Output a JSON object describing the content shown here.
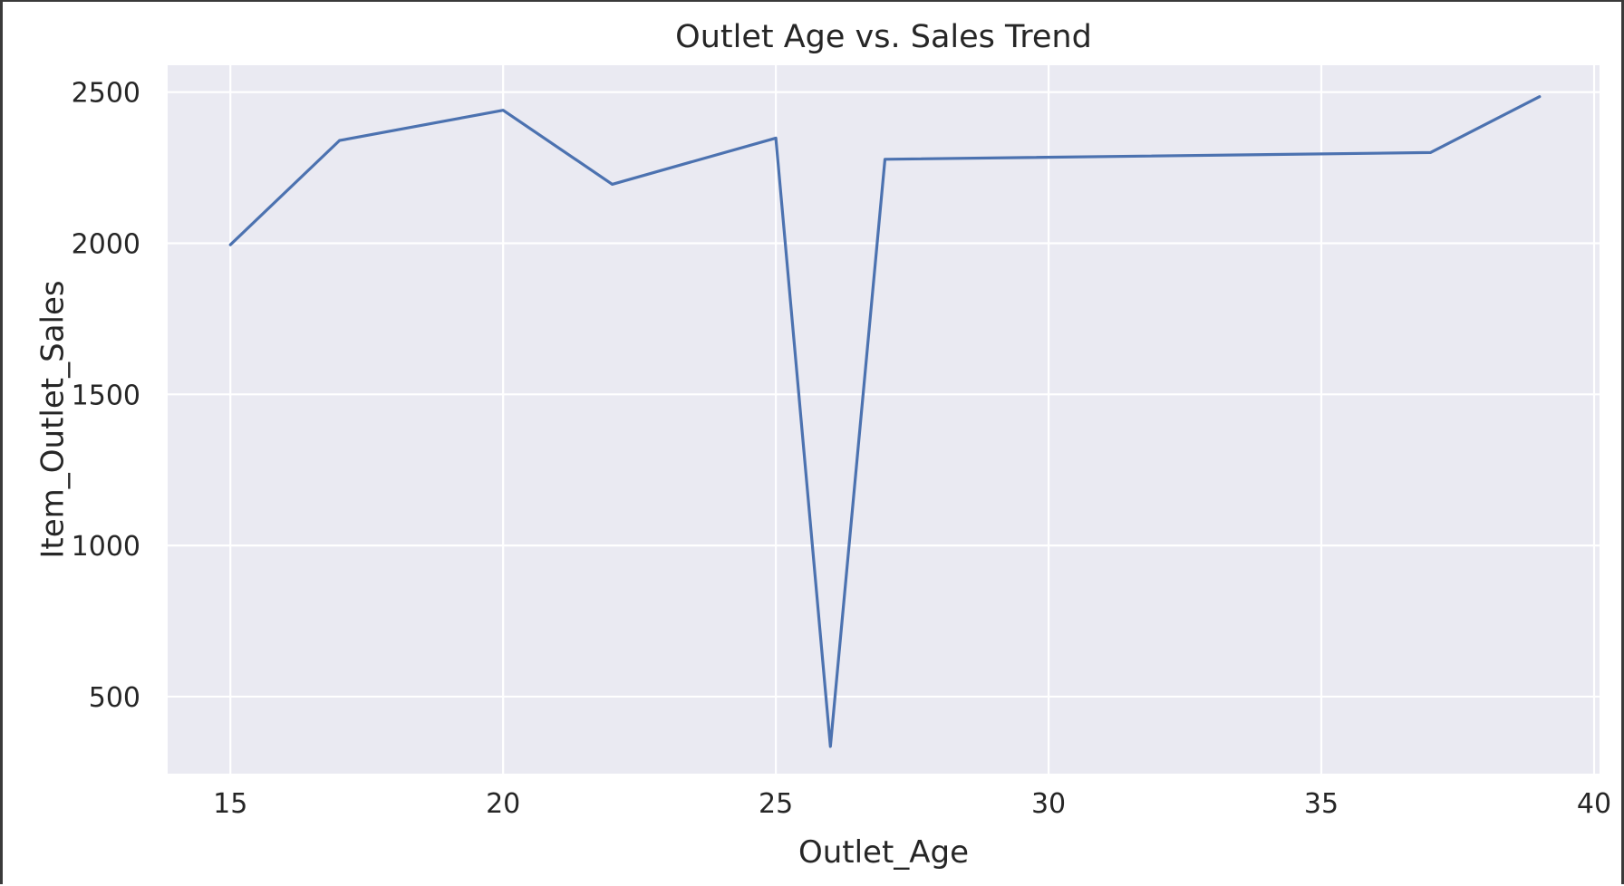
{
  "chart_data": {
    "type": "line",
    "title": "Outlet Age vs. Sales Trend",
    "xlabel": "Outlet_Age",
    "ylabel": "Item_Outlet_Sales",
    "xlim": [
      13.85,
      40.1
    ],
    "ylim": [
      245,
      2589
    ],
    "xticks": [
      15,
      20,
      25,
      30,
      35,
      40
    ],
    "yticks": [
      500,
      1000,
      1500,
      2000,
      2500
    ],
    "grid": true,
    "colors": {
      "line": "#4c72b0",
      "plot_background": "#eaeaf2",
      "grid": "#ffffff",
      "text": "#262626"
    },
    "series": [
      {
        "x": [
          15,
          17,
          20,
          22,
          25,
          26,
          27,
          37,
          39
        ],
        "y": [
          1995,
          2340,
          2440,
          2195,
          2348,
          335,
          2278,
          2300,
          2485
        ]
      }
    ]
  }
}
